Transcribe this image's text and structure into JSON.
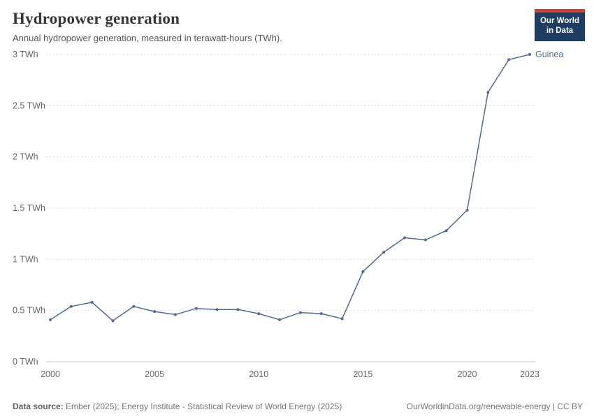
{
  "header": {
    "title": "Hydropower generation",
    "subtitle": "Annual hydropower generation, measured in terawatt-hours (TWh)."
  },
  "logo": {
    "line1": "Our World",
    "line2": "in Data"
  },
  "chart_data": {
    "type": "line",
    "title": "Hydropower generation",
    "xlabel": "",
    "ylabel": "TWh",
    "x": [
      2000,
      2001,
      2002,
      2003,
      2004,
      2005,
      2006,
      2007,
      2008,
      2009,
      2010,
      2011,
      2012,
      2013,
      2014,
      2015,
      2016,
      2017,
      2018,
      2019,
      2020,
      2021,
      2022,
      2023
    ],
    "series": [
      {
        "name": "Guinea",
        "color": "#4c6a9c",
        "values": [
          0.41,
          0.54,
          0.58,
          0.4,
          0.54,
          0.49,
          0.46,
          0.52,
          0.51,
          0.51,
          0.47,
          0.41,
          0.48,
          0.47,
          0.42,
          0.88,
          1.07,
          1.21,
          1.19,
          1.28,
          1.48,
          2.63,
          2.95,
          3.0
        ]
      }
    ],
    "ylim": [
      0,
      3
    ],
    "yticks": [
      0,
      0.5,
      1,
      1.5,
      2,
      2.5,
      3
    ],
    "ytick_labels": [
      "0 TWh",
      "0.5 TWh",
      "1 TWh",
      "1.5 TWh",
      "2 TWh",
      "2.5 TWh",
      "3 TWh"
    ],
    "xticks": [
      2000,
      2005,
      2010,
      2015,
      2020,
      2023
    ],
    "grid": "horizontal-dashed",
    "legend_position": "end-of-line-label"
  },
  "colors": {
    "line": "#4c6a9c",
    "gridline": "#dcdcdc",
    "baseline": "#c8c8c8",
    "axis_text": "#666666",
    "logo_bg": "#1d3d63",
    "logo_red": "#d93a2b"
  },
  "footer": {
    "source_label": "Data source:",
    "source_text": " Ember (2025); Energy Institute - Statistical Review of World Energy (2025)",
    "right_text": "OurWorldinData.org/renewable-energy | CC BY"
  }
}
